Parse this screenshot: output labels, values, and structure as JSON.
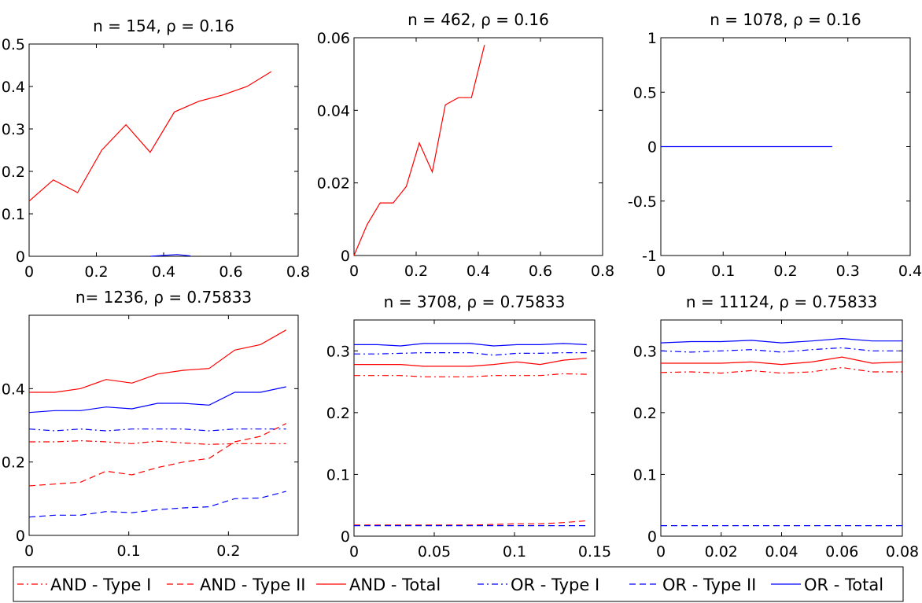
{
  "legend": [
    {
      "label": "AND - Type I",
      "color": "#ff0000",
      "style": "dashdot"
    },
    {
      "label": "AND - Type II",
      "color": "#ff0000",
      "style": "dashed"
    },
    {
      "label": "AND - Total",
      "color": "#ff0000",
      "style": "solid"
    },
    {
      "label": "OR - Type I",
      "color": "#0000ff",
      "style": "dashdot"
    },
    {
      "label": "OR - Type II",
      "color": "#0000ff",
      "style": "dashed"
    },
    {
      "label": "OR - Total",
      "color": "#0000ff",
      "style": "solid"
    }
  ],
  "chart_data": [
    {
      "type": "line",
      "title": "n = 154, ρ = 0.16",
      "xlim": [
        0,
        0.8
      ],
      "ylim": [
        0,
        0.5
      ],
      "xticks": [
        0,
        0.2,
        0.4,
        0.6,
        0.8
      ],
      "xtick_labels": [
        "0",
        "0.2",
        "0.4",
        "0.6",
        "0.8"
      ],
      "yticks": [
        0,
        0.1,
        0.2,
        0.3,
        0.4,
        0.5
      ],
      "ytick_labels": [
        "0",
        "0.1",
        "0.2",
        "0.3",
        "0.4",
        "0.5"
      ],
      "series": [
        {
          "name": "AND - Total",
          "color": "#ff0000",
          "style": "solid",
          "x": [
            0,
            0.072,
            0.144,
            0.216,
            0.288,
            0.36,
            0.432,
            0.504,
            0.576,
            0.648,
            0.72
          ],
          "y": [
            0.13,
            0.18,
            0.15,
            0.25,
            0.31,
            0.245,
            0.34,
            0.365,
            0.38,
            0.4,
            0.435
          ]
        },
        {
          "name": "OR - Total",
          "color": "#0000ff",
          "style": "solid",
          "x": [
            0.36,
            0.4,
            0.44,
            0.48
          ],
          "y": [
            0,
            0.002,
            0.004,
            0.001
          ]
        }
      ]
    },
    {
      "type": "line",
      "title": "n = 462, ρ = 0.16",
      "xlim": [
        0,
        0.8
      ],
      "ylim": [
        0,
        0.06
      ],
      "xticks": [
        0,
        0.2,
        0.4,
        0.6,
        0.8
      ],
      "xtick_labels": [
        "0",
        "0.2",
        "0.4",
        "0.6",
        "0.8"
      ],
      "yticks": [
        0,
        0.02,
        0.04,
        0.06
      ],
      "ytick_labels": [
        "0",
        "0.02",
        "0.04",
        "0.06"
      ],
      "series": [
        {
          "name": "AND - Total",
          "color": "#ff0000",
          "style": "solid",
          "x": [
            0,
            0.042,
            0.084,
            0.126,
            0.168,
            0.21,
            0.252,
            0.294,
            0.336,
            0.378,
            0.42
          ],
          "y": [
            0,
            0.0085,
            0.0145,
            0.0145,
            0.019,
            0.031,
            0.023,
            0.0415,
            0.0435,
            0.0435,
            0.058
          ]
        }
      ]
    },
    {
      "type": "line",
      "title": "n = 1078, ρ = 0.16",
      "xlim": [
        0,
        0.4
      ],
      "ylim": [
        -1,
        1
      ],
      "xticks": [
        0,
        0.1,
        0.2,
        0.3,
        0.4
      ],
      "xtick_labels": [
        "0",
        "0.1",
        "0.2",
        "0.3",
        "0.4"
      ],
      "yticks": [
        -1,
        -0.5,
        0,
        0.5,
        1
      ],
      "ytick_labels": [
        "-1",
        "-0.5",
        "0",
        "0.5",
        "1"
      ],
      "series": [
        {
          "name": "OR - Total",
          "color": "#0000ff",
          "style": "solid",
          "x": [
            0,
            0.275
          ],
          "y": [
            0,
            0
          ]
        }
      ]
    },
    {
      "type": "line",
      "title": "n= 1236, ρ = 0.75833",
      "xlim": [
        0,
        0.27
      ],
      "ylim": [
        0,
        0.6
      ],
      "xticks": [
        0,
        0.1,
        0.2
      ],
      "xtick_labels": [
        "0",
        "0.1",
        "0.2"
      ],
      "yticks": [
        0,
        0.2,
        0.4
      ],
      "ytick_labels": [
        "0",
        "0.2",
        "0.4"
      ],
      "series": [
        {
          "name": "AND - Total",
          "color": "#ff0000",
          "style": "solid",
          "x": [
            0,
            0.0258,
            0.0516,
            0.0774,
            0.1032,
            0.129,
            0.1548,
            0.1806,
            0.2064,
            0.2322,
            0.258
          ],
          "y": [
            0.39,
            0.39,
            0.4,
            0.425,
            0.415,
            0.44,
            0.45,
            0.455,
            0.505,
            0.52,
            0.56
          ]
        },
        {
          "name": "OR - Total",
          "color": "#0000ff",
          "style": "solid",
          "x": [
            0,
            0.0258,
            0.0516,
            0.0774,
            0.1032,
            0.129,
            0.1548,
            0.1806,
            0.2064,
            0.2322,
            0.258
          ],
          "y": [
            0.335,
            0.34,
            0.34,
            0.35,
            0.345,
            0.36,
            0.36,
            0.355,
            0.39,
            0.39,
            0.405
          ]
        },
        {
          "name": "OR - Type I",
          "color": "#0000ff",
          "style": "dashdot",
          "x": [
            0,
            0.0258,
            0.0516,
            0.0774,
            0.1032,
            0.129,
            0.1548,
            0.1806,
            0.2064,
            0.2322,
            0.258
          ],
          "y": [
            0.29,
            0.285,
            0.29,
            0.285,
            0.29,
            0.29,
            0.29,
            0.285,
            0.29,
            0.29,
            0.29
          ]
        },
        {
          "name": "AND - Type I",
          "color": "#ff0000",
          "style": "dashdot",
          "x": [
            0,
            0.0258,
            0.0516,
            0.0774,
            0.1032,
            0.129,
            0.1548,
            0.1806,
            0.2064,
            0.2322,
            0.258
          ],
          "y": [
            0.255,
            0.255,
            0.258,
            0.255,
            0.25,
            0.257,
            0.252,
            0.248,
            0.25,
            0.25,
            0.25
          ]
        },
        {
          "name": "AND - Type II",
          "color": "#ff0000",
          "style": "dashed",
          "x": [
            0,
            0.0258,
            0.0516,
            0.0774,
            0.1032,
            0.129,
            0.1548,
            0.1806,
            0.2064,
            0.2322,
            0.258
          ],
          "y": [
            0.135,
            0.14,
            0.145,
            0.175,
            0.165,
            0.185,
            0.2,
            0.21,
            0.255,
            0.27,
            0.305
          ]
        },
        {
          "name": "OR - Type II",
          "color": "#0000ff",
          "style": "dashed",
          "x": [
            0,
            0.0258,
            0.0516,
            0.0774,
            0.1032,
            0.129,
            0.1548,
            0.1806,
            0.2064,
            0.2322,
            0.258
          ],
          "y": [
            0.05,
            0.055,
            0.055,
            0.065,
            0.062,
            0.07,
            0.075,
            0.078,
            0.1,
            0.102,
            0.12
          ]
        }
      ]
    },
    {
      "type": "line",
      "title": "n = 3708, ρ = 0.75833",
      "xlim": [
        0,
        0.15
      ],
      "ylim": [
        0,
        0.35
      ],
      "xticks": [
        0,
        0.05,
        0.1,
        0.15
      ],
      "xtick_labels": [
        "0",
        "0.05",
        "0.1",
        "0.15"
      ],
      "yticks": [
        0,
        0.1,
        0.2,
        0.3
      ],
      "ytick_labels": [
        "0",
        "0.1",
        "0.2",
        "0.3"
      ],
      "series": [
        {
          "name": "OR - Total",
          "color": "#0000ff",
          "style": "solid",
          "x": [
            0,
            0.0145,
            0.029,
            0.0435,
            0.058,
            0.0725,
            0.087,
            0.1015,
            0.116,
            0.1305,
            0.145
          ],
          "y": [
            0.31,
            0.31,
            0.308,
            0.312,
            0.312,
            0.312,
            0.308,
            0.31,
            0.31,
            0.312,
            0.31
          ]
        },
        {
          "name": "OR - Type I",
          "color": "#0000ff",
          "style": "dashdot",
          "x": [
            0,
            0.0145,
            0.029,
            0.0435,
            0.058,
            0.0725,
            0.087,
            0.1015,
            0.116,
            0.1305,
            0.145
          ],
          "y": [
            0.295,
            0.295,
            0.296,
            0.297,
            0.297,
            0.297,
            0.293,
            0.296,
            0.296,
            0.297,
            0.297
          ]
        },
        {
          "name": "AND - Total",
          "color": "#ff0000",
          "style": "solid",
          "x": [
            0,
            0.0145,
            0.029,
            0.0435,
            0.058,
            0.0725,
            0.087,
            0.1015,
            0.116,
            0.1305,
            0.145
          ],
          "y": [
            0.278,
            0.278,
            0.278,
            0.275,
            0.275,
            0.275,
            0.278,
            0.282,
            0.278,
            0.285,
            0.288
          ]
        },
        {
          "name": "AND - Type I",
          "color": "#ff0000",
          "style": "dashdot",
          "x": [
            0,
            0.0145,
            0.029,
            0.0435,
            0.058,
            0.0725,
            0.087,
            0.1015,
            0.116,
            0.1305,
            0.145
          ],
          "y": [
            0.26,
            0.26,
            0.26,
            0.258,
            0.258,
            0.258,
            0.26,
            0.26,
            0.26,
            0.263,
            0.262
          ]
        },
        {
          "name": "AND - Type II",
          "color": "#ff0000",
          "style": "dashed",
          "x": [
            0,
            0.0145,
            0.029,
            0.0435,
            0.058,
            0.0725,
            0.087,
            0.1015,
            0.116,
            0.1305,
            0.145
          ],
          "y": [
            0.018,
            0.018,
            0.018,
            0.018,
            0.018,
            0.018,
            0.019,
            0.02,
            0.02,
            0.022,
            0.025
          ]
        },
        {
          "name": "OR - Type II",
          "color": "#0000ff",
          "style": "dashed",
          "x": [
            0,
            0.0145,
            0.029,
            0.0435,
            0.058,
            0.0725,
            0.087,
            0.1015,
            0.116,
            0.1305,
            0.145
          ],
          "y": [
            0.017,
            0.017,
            0.017,
            0.017,
            0.017,
            0.017,
            0.017,
            0.017,
            0.017,
            0.017,
            0.017
          ]
        }
      ]
    },
    {
      "type": "line",
      "title": "n = 11124, ρ = 0.75833",
      "xlim": [
        0,
        0.08
      ],
      "ylim": [
        0,
        0.35
      ],
      "xticks": [
        0,
        0.02,
        0.04,
        0.06,
        0.08
      ],
      "xtick_labels": [
        "0",
        "0.02",
        "0.04",
        "0.06",
        "0.08"
      ],
      "yticks": [
        0,
        0.1,
        0.2,
        0.3
      ],
      "ytick_labels": [
        "0",
        "0.1",
        "0.2",
        "0.3"
      ],
      "series": [
        {
          "name": "OR - Total",
          "color": "#0000ff",
          "style": "solid",
          "x": [
            0,
            0.01,
            0.02,
            0.03,
            0.04,
            0.05,
            0.06,
            0.07,
            0.08
          ],
          "y": [
            0.313,
            0.315,
            0.315,
            0.317,
            0.313,
            0.316,
            0.32,
            0.316,
            0.316
          ]
        },
        {
          "name": "OR - Type I",
          "color": "#0000ff",
          "style": "dashdot",
          "x": [
            0,
            0.01,
            0.02,
            0.03,
            0.04,
            0.05,
            0.06,
            0.07,
            0.08
          ],
          "y": [
            0.3,
            0.298,
            0.3,
            0.302,
            0.298,
            0.302,
            0.305,
            0.3,
            0.3
          ]
        },
        {
          "name": "AND - Total",
          "color": "#ff0000",
          "style": "solid",
          "x": [
            0,
            0.01,
            0.02,
            0.03,
            0.04,
            0.05,
            0.06,
            0.07,
            0.08
          ],
          "y": [
            0.28,
            0.28,
            0.28,
            0.282,
            0.278,
            0.282,
            0.29,
            0.28,
            0.282
          ]
        },
        {
          "name": "AND - Type I",
          "color": "#ff0000",
          "style": "dashdot",
          "x": [
            0,
            0.01,
            0.02,
            0.03,
            0.04,
            0.05,
            0.06,
            0.07,
            0.08
          ],
          "y": [
            0.265,
            0.266,
            0.264,
            0.268,
            0.264,
            0.266,
            0.273,
            0.266,
            0.266
          ]
        },
        {
          "name": "OR - Type II",
          "color": "#0000ff",
          "style": "dashed",
          "x": [
            0,
            0.08
          ],
          "y": [
            0.017,
            0.017
          ]
        }
      ]
    }
  ]
}
